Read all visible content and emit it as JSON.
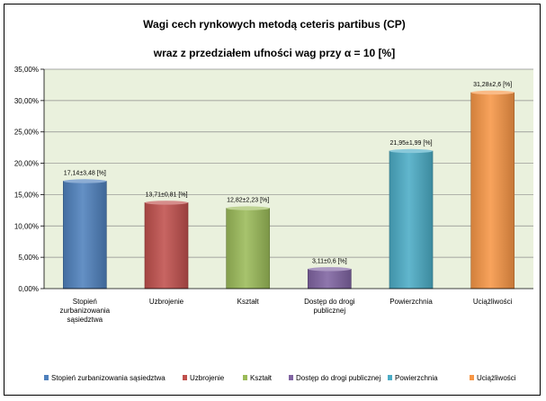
{
  "chart_data": {
    "type": "bar",
    "title": "Wagi cech rynkowych metodą ceteris partibus (CP)",
    "subtitle": "wraz z przedziałem ufności wag  przy α = 10 [%]",
    "categories": [
      [
        "Stopień",
        "zurbanizowania",
        "sąsiedztwa"
      ],
      [
        "Uzbrojenie"
      ],
      [
        "Kształt"
      ],
      [
        "Dostęp do drogi",
        "publicznej"
      ],
      [
        "Powierzchnia"
      ],
      [
        "Uciążliwości"
      ]
    ],
    "values": [
      17.14,
      13.71,
      12.82,
      3.11,
      21.95,
      31.28
    ],
    "value_labels": [
      "17,14±3,48 [%]",
      "13,71±0,81 [%]",
      "12,82±2,23 [%]",
      "3,11±0,6 [%]",
      "21,95±1,99 [%]",
      "31,28±2,6 [%]"
    ],
    "colors": [
      "#4f81bd",
      "#c0504d",
      "#9bbb59",
      "#8064a2",
      "#4bacc6",
      "#f79646"
    ],
    "ylim": [
      0,
      35
    ],
    "yticks": [
      0,
      5,
      10,
      15,
      20,
      25,
      30,
      35
    ],
    "ytick_labels": [
      "0,00%",
      "5,00%",
      "10,00%",
      "15,00%",
      "20,00%",
      "25,00%",
      "30,00%",
      "35,00%"
    ],
    "legend": [
      "Stopień zurbanizowania sąsiedztwa",
      "Uzbrojenie",
      "Kształt",
      "Dostęp do drogi publicznej",
      "Powierzchnia",
      "Uciążliwości"
    ],
    "legend_position": "bottom",
    "plot_background": "#eaf1dd",
    "grid": true,
    "xlabel": "",
    "ylabel": ""
  }
}
